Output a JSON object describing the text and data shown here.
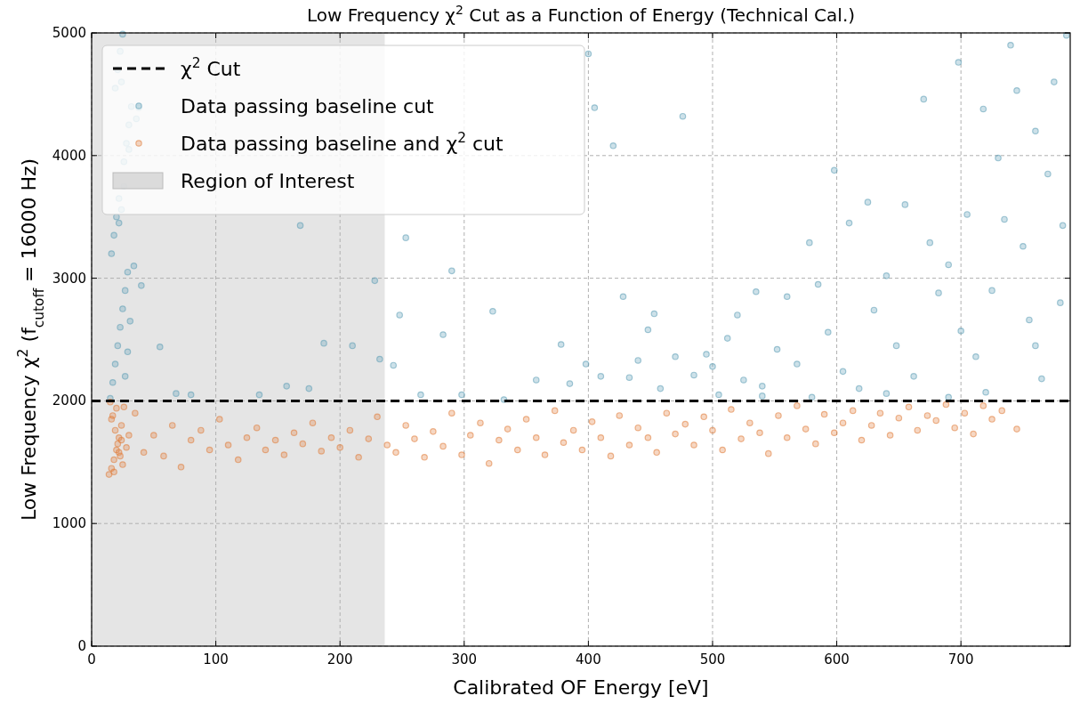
{
  "chart_data": {
    "type": "scatter",
    "title": "Low Frequency χ$^{2}$ Cut as a Function of Energy (Technical Cal.)",
    "xlabel": "Calibrated OF Energy [eV]",
    "ylabel": "Low Frequency χ$^{2}$ (f$_{cutoff}$ = 16000 Hz)",
    "xlim": [
      0,
      788
    ],
    "ylim": [
      0,
      5000
    ],
    "xticks": [
      0,
      100,
      200,
      300,
      400,
      500,
      600,
      700
    ],
    "yticks": [
      0,
      1000,
      2000,
      3000,
      4000,
      5000
    ],
    "grid": true,
    "legend": "top left",
    "marker": "circle",
    "ref_lines": [
      {
        "axis": "y",
        "value": 2000,
        "label": "χ$^{2}$ Cut",
        "color": "#000000",
        "line_style": "dashed"
      }
    ],
    "bands": [
      {
        "axis": "x",
        "from": 0,
        "to": 236,
        "label": "Region of Interest",
        "color": "#d3d3d3"
      }
    ],
    "series": [
      {
        "name": "Data passing baseline cut",
        "color": "#5b9db5",
        "x": [
          15,
          17,
          19,
          21,
          23,
          25,
          27,
          29,
          16,
          18,
          20,
          22,
          24,
          26,
          28,
          30,
          32,
          19,
          21,
          23,
          25,
          27,
          29,
          31,
          34,
          22,
          26,
          30,
          36,
          24,
          40,
          38,
          55,
          68,
          80,
          135,
          168,
          175,
          187,
          210,
          228,
          232,
          157,
          253,
          248,
          243,
          265,
          283,
          290,
          298,
          323,
          332,
          358,
          378,
          385,
          398,
          400,
          405,
          410,
          420,
          428,
          433,
          440,
          448,
          453,
          458,
          470,
          476,
          485,
          495,
          500,
          505,
          512,
          520,
          525,
          535,
          540,
          552,
          560,
          568,
          578,
          585,
          593,
          598,
          605,
          610,
          618,
          625,
          630,
          640,
          648,
          655,
          662,
          670,
          675,
          682,
          690,
          698,
          700,
          705,
          712,
          718,
          725,
          730,
          735,
          740,
          745,
          750,
          755,
          760,
          765,
          770,
          775,
          780,
          785,
          782,
          760,
          720,
          690,
          640,
          580,
          540
        ],
        "values": [
          2020,
          2150,
          2300,
          2450,
          2600,
          2750,
          2900,
          3050,
          3200,
          3350,
          3500,
          3650,
          3560,
          3950,
          4100,
          4250,
          4400,
          4550,
          4700,
          4850,
          4990,
          2200,
          2400,
          2650,
          3100,
          3450,
          3750,
          4050,
          4300,
          4600,
          2940,
          4390,
          2440,
          2060,
          2050,
          2050,
          3430,
          2100,
          2470,
          2450,
          2980,
          2340,
          2120,
          3330,
          2700,
          2290,
          2050,
          2540,
          3060,
          2050,
          2730,
          2010,
          2170,
          2460,
          2140,
          2300,
          4830,
          4390,
          2200,
          4080,
          2850,
          2190,
          2330,
          2580,
          2710,
          2100,
          2360,
          4320,
          2210,
          2380,
          2280,
          2050,
          2510,
          2700,
          2170,
          2890,
          2120,
          2420,
          2850,
          2300,
          3290,
          2950,
          2560,
          3880,
          2240,
          3450,
          2100,
          3620,
          2740,
          3020,
          2450,
          3600,
          2200,
          4460,
          3290,
          2880,
          3110,
          4760,
          2570,
          3520,
          2360,
          4380,
          2900,
          3980,
          3480,
          4900,
          4530,
          3260,
          2660,
          4200,
          2180,
          3850,
          4600,
          2800,
          4980,
          3430,
          2450,
          2070,
          2030,
          2060,
          2030,
          2040
        ]
      },
      {
        "name": "Data passing baseline and χ$^{2}$ cut",
        "color": "#e07b39",
        "x": [
          14,
          16,
          18,
          20,
          22,
          24,
          26,
          15,
          17,
          19,
          21,
          23,
          25,
          28,
          30,
          16,
          18,
          20,
          22,
          24,
          35,
          42,
          50,
          58,
          65,
          72,
          80,
          88,
          95,
          103,
          110,
          118,
          125,
          133,
          140,
          148,
          155,
          163,
          170,
          178,
          185,
          193,
          200,
          208,
          215,
          223,
          230,
          238,
          245,
          253,
          260,
          268,
          275,
          283,
          290,
          298,
          305,
          313,
          320,
          328,
          335,
          343,
          350,
          358,
          365,
          373,
          380,
          388,
          395,
          403,
          410,
          418,
          425,
          433,
          440,
          448,
          455,
          463,
          470,
          478,
          485,
          493,
          500,
          508,
          515,
          523,
          530,
          538,
          545,
          553,
          560,
          568,
          575,
          583,
          590,
          598,
          605,
          613,
          620,
          628,
          635,
          643,
          650,
          658,
          665,
          673,
          680,
          688,
          695,
          703,
          710,
          718,
          725,
          733,
          745
        ],
        "values": [
          1400,
          1450,
          1520,
          1600,
          1700,
          1800,
          1950,
          1990,
          1880,
          1760,
          1650,
          1550,
          1480,
          1620,
          1720,
          1850,
          1420,
          1940,
          1580,
          1680,
          1900,
          1580,
          1720,
          1550,
          1800,
          1460,
          1680,
          1760,
          1600,
          1850,
          1640,
          1520,
          1700,
          1780,
          1600,
          1680,
          1560,
          1740,
          1650,
          1820,
          1590,
          1700,
          1620,
          1760,
          1540,
          1690,
          1870,
          1640,
          1580,
          1800,
          1690,
          1540,
          1750,
          1630,
          1900,
          1560,
          1720,
          1820,
          1490,
          1680,
          1770,
          1600,
          1850,
          1700,
          1560,
          1920,
          1660,
          1760,
          1600,
          1830,
          1700,
          1550,
          1880,
          1640,
          1780,
          1700,
          1580,
          1900,
          1730,
          1810,
          1640,
          1870,
          1760,
          1600,
          1930,
          1690,
          1820,
          1740,
          1570,
          1880,
          1700,
          1960,
          1770,
          1650,
          1890,
          1740,
          1820,
          1920,
          1680,
          1800,
          1900,
          1720,
          1860,
          1950,
          1760,
          1880,
          1840,
          1970,
          1780,
          1900,
          1730,
          1960,
          1850,
          1920,
          1770
        ]
      }
    ]
  }
}
